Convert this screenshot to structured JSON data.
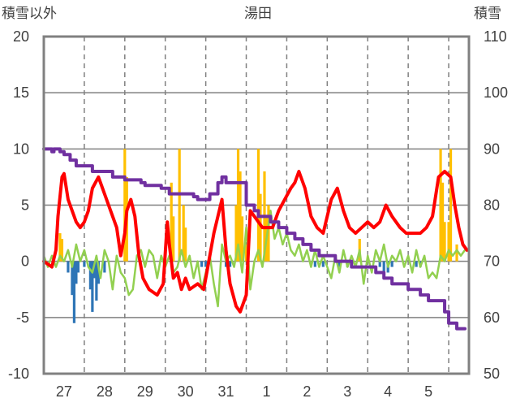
{
  "chart_data": {
    "type": "line",
    "title": "湯田",
    "left_axis_label": "積雪以外",
    "right_axis_label": "積雪",
    "left_ylim": [
      -10,
      20
    ],
    "left_ticks": [
      "-10",
      "-5",
      "0",
      "5",
      "10",
      "15",
      "20"
    ],
    "right_ylim": [
      50,
      110
    ],
    "right_ticks": [
      "50",
      "60",
      "70",
      "80",
      "90",
      "100",
      "110"
    ],
    "x_range": [
      0,
      10.5
    ],
    "x_tick_labels": [
      "27",
      "28",
      "29",
      "30",
      "31",
      "1",
      "2",
      "3",
      "4",
      "5"
    ],
    "grid": "dashed vertical lines at each day, horizontal grid at each 5 units",
    "colors": {
      "snowfall_bars": "#FFC000",
      "precip_negative_bars": "#2E75B6",
      "temperature": "#FF0000",
      "humidity_like_line": "#92D050",
      "snow_depth": "#7030A0",
      "frame": "#808080",
      "grid": "#808080"
    },
    "series": [
      {
        "type": "line",
        "axis": "right",
        "color": "#7030A0",
        "x": [
          0,
          0.1,
          0.2,
          0.25,
          0.4,
          0.5,
          0.65,
          0.8,
          1.0,
          1.2,
          1.5,
          1.7,
          1.9,
          2.0,
          2.2,
          2.4,
          2.5,
          2.9,
          3.0,
          3.1,
          3.2,
          3.5,
          3.7,
          3.8,
          4.0,
          4.1,
          4.3,
          4.4,
          4.5,
          5.0,
          5.2,
          5.3,
          5.5,
          5.6,
          5.8,
          6.0,
          6.2,
          6.4,
          6.6,
          6.8,
          7.0,
          7.2,
          7.4,
          7.6,
          8.0,
          8.2,
          8.4,
          8.6,
          8.8,
          9.0,
          9.3,
          9.5,
          9.7,
          9.8,
          9.9,
          10.0,
          10.2,
          10.4
        ],
        "values": [
          90,
          90,
          89.5,
          90,
          89.5,
          89,
          88,
          87,
          87,
          86,
          86,
          85,
          85,
          84.5,
          84.5,
          84,
          83.5,
          83,
          83,
          82,
          82,
          82,
          81.5,
          81,
          81,
          82,
          84,
          85,
          84,
          80,
          79,
          78,
          78,
          77,
          76,
          75,
          74,
          73,
          72,
          71,
          71,
          70,
          70,
          69,
          69,
          68,
          67,
          66,
          66,
          65,
          64,
          63,
          63,
          63,
          61,
          59,
          58,
          58
        ]
      },
      {
        "type": "line",
        "axis": "left",
        "color": "#FF0000",
        "x": [
          0,
          0.2,
          0.3,
          0.35,
          0.45,
          0.5,
          0.6,
          0.7,
          0.8,
          0.9,
          1.0,
          1.1,
          1.2,
          1.35,
          1.5,
          1.65,
          1.8,
          1.9,
          2.0,
          2.05,
          2.15,
          2.25,
          2.35,
          2.45,
          2.6,
          2.8,
          2.95,
          3.05,
          3.1,
          3.2,
          3.3,
          3.4,
          3.5,
          3.6,
          3.8,
          3.95,
          4.1,
          4.2,
          4.3,
          4.4,
          4.5,
          4.6,
          4.75,
          4.85,
          5.0,
          5.1,
          5.2,
          5.3,
          5.4,
          5.5,
          5.65,
          5.8,
          5.95,
          6.1,
          6.2,
          6.3,
          6.45,
          6.6,
          6.75,
          6.9,
          7.0,
          7.1,
          7.25,
          7.4,
          7.55,
          7.7,
          7.85,
          8.0,
          8.15,
          8.3,
          8.45,
          8.6,
          8.8,
          8.95,
          9.1,
          9.3,
          9.45,
          9.6,
          9.75,
          9.9,
          10.05,
          10.15,
          10.25,
          10.35,
          10.45
        ],
        "values": [
          0,
          -0.5,
          1,
          4,
          7.5,
          7.8,
          5.5,
          4.5,
          3.5,
          3.0,
          3.5,
          4.5,
          6.5,
          7.5,
          6.0,
          4.5,
          3.0,
          0.5,
          2.5,
          4.5,
          5.5,
          4.0,
          0.5,
          -1.5,
          -2.5,
          -3.0,
          -2.0,
          3.5,
          1.5,
          -1.5,
          -1.0,
          -2.5,
          -1.5,
          -2.5,
          -2.0,
          -2.5,
          0.5,
          2.5,
          4.0,
          5.5,
          1.0,
          -2.0,
          -4.0,
          -4.5,
          -3.0,
          4.5,
          4.0,
          3.5,
          3.0,
          3.0,
          3.0,
          4.5,
          5.5,
          6.5,
          7.0,
          8.0,
          6.5,
          4.0,
          3.0,
          2.5,
          4.0,
          5.5,
          6.5,
          4.5,
          3.0,
          2.5,
          3.0,
          3.5,
          3.0,
          3.5,
          5.0,
          4.0,
          3.0,
          2.5,
          2.5,
          2.5,
          3.0,
          4.0,
          7.5,
          8.0,
          7.5,
          5.0,
          3.0,
          1.5,
          1.0
        ]
      },
      {
        "type": "line",
        "axis": "left",
        "color": "#92D050",
        "x": [
          0,
          0.1,
          0.2,
          0.3,
          0.4,
          0.5,
          0.6,
          0.7,
          0.8,
          0.9,
          1.0,
          1.1,
          1.2,
          1.3,
          1.4,
          1.5,
          1.6,
          1.7,
          1.8,
          1.9,
          2.0,
          2.1,
          2.2,
          2.3,
          2.4,
          2.5,
          2.6,
          2.7,
          2.8,
          2.9,
          3.0,
          3.1,
          3.2,
          3.3,
          3.4,
          3.5,
          3.6,
          3.7,
          3.8,
          3.9,
          4.0,
          4.1,
          4.2,
          4.3,
          4.4,
          4.5,
          4.6,
          4.7,
          4.8,
          4.9,
          5.0,
          5.1,
          5.2,
          5.3,
          5.4,
          5.5,
          5.6,
          5.7,
          5.8,
          5.9,
          6.0,
          6.1,
          6.2,
          6.3,
          6.4,
          6.5,
          6.6,
          6.7,
          6.8,
          6.9,
          7.0,
          7.1,
          7.2,
          7.3,
          7.4,
          7.5,
          7.6,
          7.7,
          7.8,
          7.9,
          8.0,
          8.1,
          8.2,
          8.3,
          8.4,
          8.5,
          8.6,
          8.7,
          8.8,
          8.9,
          9.0,
          9.1,
          9.2,
          9.3,
          9.4,
          9.5,
          9.6,
          9.7,
          9.8,
          9.9,
          10.0,
          10.1,
          10.2,
          10.3,
          10.4
        ],
        "values": [
          0.5,
          -0.5,
          0.5,
          -0.5,
          0.5,
          0,
          1.0,
          -0.5,
          1.5,
          0,
          1.0,
          -0.5,
          -1.0,
          0.5,
          -1.5,
          1.0,
          0,
          -2.5,
          0.5,
          -1.0,
          -1.5,
          -3.0,
          -2.5,
          0.5,
          1.0,
          -0.5,
          1.0,
          0.5,
          -1.5,
          0.5,
          -0.5,
          0.5,
          -1.0,
          -0.5,
          1.0,
          -0.5,
          0.5,
          -1.5,
          0,
          -2.5,
          -1.0,
          0.5,
          -2.0,
          -4.0,
          1.5,
          0,
          0.5,
          -0.5,
          1.5,
          -1.0,
          3.0,
          -2.5,
          0,
          1.0,
          -0.5,
          2.0,
          4.5,
          2.0,
          3.0,
          1.5,
          2.5,
          1.0,
          0.5,
          1.5,
          0,
          1.0,
          -0.5,
          1.0,
          -0.5,
          0.5,
          -0.5,
          -1.5,
          0.5,
          -1.0,
          1.0,
          -0.5,
          0.5,
          -0.5,
          1.0,
          -2.0,
          0.5,
          -1.0,
          1.0,
          0,
          1.5,
          -0.5,
          0.5,
          0,
          1.0,
          -0.5,
          0.5,
          -1.0,
          1.0,
          -0.5,
          0.5,
          -1.5,
          -1.0,
          -1.5,
          0.5,
          0,
          1.0,
          0.5,
          1.0,
          0.5,
          1.0
        ]
      },
      {
        "type": "bar",
        "axis": "left",
        "color": "#FFC000",
        "x": [
          0.4,
          0.45,
          2.0,
          2.05,
          3.15,
          3.2,
          3.35,
          3.45,
          3.5,
          4.75,
          4.8,
          4.85,
          4.9,
          5.0,
          5.3,
          5.35,
          5.45,
          5.5,
          5.55,
          7.8,
          9.8,
          9.85,
          9.9,
          10.0,
          10.05,
          10.2
        ],
        "values": [
          2.5,
          2.0,
          10.0,
          7.5,
          7.0,
          4.0,
          10.0,
          5.0,
          3.0,
          5.0,
          10.0,
          8.0,
          4.0,
          1.5,
          10.0,
          6.0,
          8.0,
          4.0,
          5.0,
          2.0,
          10.0,
          7.0,
          3.5,
          3.5,
          10.0,
          1.5
        ]
      },
      {
        "type": "bar",
        "axis": "left",
        "color": "#2E75B6",
        "x": [
          0.6,
          0.7,
          0.75,
          0.8,
          0.85,
          1.0,
          1.15,
          1.2,
          1.25,
          1.3,
          1.35,
          1.5,
          3.9,
          4.0,
          4.5,
          4.6,
          6.7,
          6.9,
          7.3,
          7.5,
          8.3,
          8.4,
          8.5,
          8.6,
          9.2,
          9.3
        ],
        "values": [
          -1.0,
          -3.0,
          -5.5,
          -2.0,
          -1.0,
          -0.5,
          -2.5,
          -4.5,
          -1.5,
          -3.5,
          -2.0,
          -1.0,
          -0.5,
          -0.5,
          -0.5,
          -0.5,
          -0.5,
          -0.5,
          -0.5,
          -0.5,
          -0.5,
          -1.5,
          -1.0,
          -0.5,
          -0.5,
          -0.5
        ]
      }
    ]
  }
}
